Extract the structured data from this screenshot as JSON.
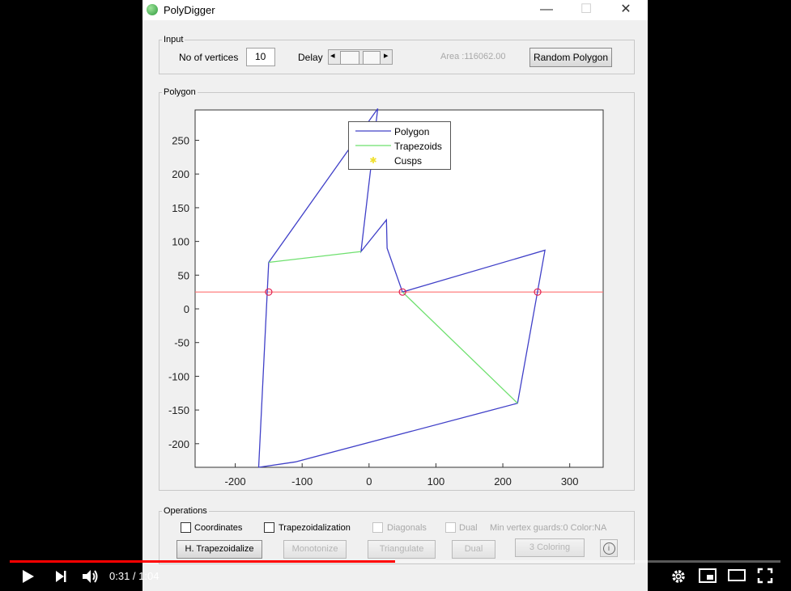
{
  "window": {
    "title": "PolyDigger",
    "minimize": "—",
    "maximize": "☐",
    "close": "✕"
  },
  "input_panel": {
    "legend": "Input",
    "vertices_label": "No of vertices",
    "vertices_value": "10",
    "delay_label": "Delay",
    "delay_left_arrow": "◂",
    "delay_right_arrow": "▸",
    "area": "Area :116062.00",
    "random_button": "Random Polygon"
  },
  "polygon_panel": {
    "legend": "Polygon"
  },
  "chart_data": {
    "type": "line",
    "xlim": [
      -260,
      350
    ],
    "ylim": [
      -235,
      295
    ],
    "xticks": [
      -200,
      -100,
      0,
      100,
      200,
      300
    ],
    "yticks": [
      250,
      200,
      150,
      100,
      50,
      0,
      -50,
      -100,
      -150,
      -200
    ],
    "legend_position": "top-right",
    "grid": false,
    "series": [
      {
        "name": "Polygon",
        "color": "#4040c8",
        "points": [
          [
            -165,
            -235
          ],
          [
            -110,
            -227
          ],
          [
            222,
            -140
          ],
          [
            263,
            87
          ],
          [
            50,
            25
          ],
          [
            27,
            90
          ],
          [
            26,
            132
          ],
          [
            -12,
            85
          ],
          [
            13,
            297
          ],
          [
            -150,
            69
          ],
          [
            -165,
            -235
          ]
        ]
      },
      {
        "name": "Trapezoids",
        "color": "#6ee06e",
        "segments": [
          [
            [
              -150,
              69
            ],
            [
              -12,
              85
            ]
          ],
          [
            [
              50,
              25
            ],
            [
              222,
              -140
            ]
          ]
        ]
      },
      {
        "name": "Cusps",
        "color": "#f0e030"
      }
    ],
    "sweep_line": {
      "y": 25,
      "color": "#ff7070"
    },
    "event_points": [
      [
        -150,
        25
      ],
      [
        50,
        25
      ],
      [
        252,
        25
      ]
    ]
  },
  "operations_panel": {
    "legend": "Operations",
    "coordinates": "Coordinates",
    "trapezoidalization": "Trapezoidalization",
    "diagonals": "Diagonals",
    "dual": "Dual",
    "status": "Min vertex guards:0 Color:NA",
    "h_trap_button": "H. Trapezoidalize",
    "monotonize_button": "Monotonize",
    "triangulate_button": "Triangulate",
    "dual_button": "Dual",
    "coloring_button": "3 Coloring",
    "info_button": "i"
  },
  "player": {
    "time": "0:31 / 1:04",
    "progress": 0.5
  }
}
